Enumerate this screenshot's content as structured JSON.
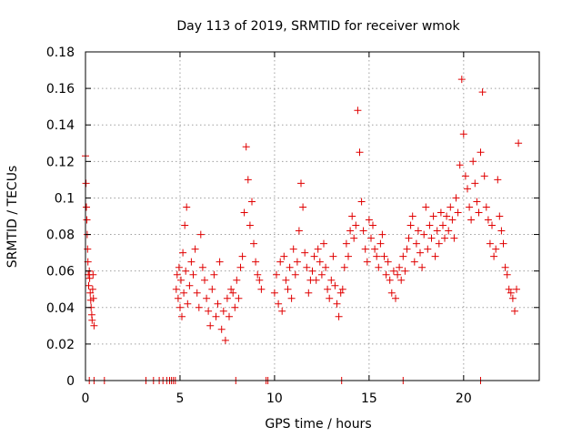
{
  "chart_data": {
    "type": "scatter",
    "title": "Day 113 of 2019, SRMTID for receiver wmok",
    "xlabel": "GPS time / hours",
    "ylabel": "SRMTID / TECUs",
    "xlim": [
      0,
      24
    ],
    "ylim": [
      0,
      0.18
    ],
    "xticks": [
      0,
      5,
      10,
      15,
      20
    ],
    "xtick_labels": [
      "0",
      "5",
      "10",
      "15",
      "20"
    ],
    "yticks": [
      0,
      0.02,
      0.04,
      0.06,
      0.08,
      0.1,
      0.12,
      0.14,
      0.16,
      0.18
    ],
    "ytick_labels": [
      "0",
      "0.02",
      "0.04",
      "0.06",
      "0.08",
      "0.1",
      "0.12",
      "0.14",
      "0.16",
      "0.18"
    ],
    "grid": true,
    "marker": "+",
    "color": "#e00000",
    "series": [
      {
        "name": "SRMTID",
        "x": [
          0.0,
          0.03,
          0.05,
          0.07,
          0.09,
          0.11,
          0.13,
          0.15,
          0.17,
          0.2,
          0.22,
          0.25,
          0.28,
          0.3,
          0.33,
          0.35,
          0.38,
          0.4,
          0.42,
          0.45,
          4.8,
          4.85,
          4.9,
          4.95,
          5.0,
          5.05,
          5.1,
          5.15,
          5.2,
          5.25,
          5.3,
          5.35,
          5.4,
          5.5,
          5.6,
          5.7,
          5.8,
          5.9,
          6.0,
          6.1,
          6.2,
          6.3,
          6.4,
          6.5,
          6.6,
          6.7,
          6.8,
          6.9,
          7.0,
          7.1,
          7.2,
          7.3,
          7.4,
          7.5,
          7.6,
          7.7,
          7.8,
          7.9,
          8.0,
          8.1,
          8.2,
          8.3,
          8.4,
          8.5,
          8.6,
          8.7,
          8.8,
          8.9,
          9.0,
          9.1,
          9.2,
          9.3,
          10.0,
          10.1,
          10.2,
          10.3,
          10.4,
          10.5,
          10.6,
          10.7,
          10.8,
          10.9,
          11.0,
          11.1,
          11.2,
          11.3,
          11.4,
          11.5,
          11.6,
          11.7,
          11.8,
          11.9,
          12.0,
          12.1,
          12.2,
          12.3,
          12.4,
          12.5,
          12.6,
          12.7,
          12.8,
          12.9,
          13.0,
          13.1,
          13.2,
          13.3,
          13.4,
          13.5,
          13.6,
          13.7,
          13.8,
          13.9,
          14.0,
          14.1,
          14.2,
          14.3,
          14.4,
          14.5,
          14.6,
          14.7,
          14.8,
          14.9,
          15.0,
          15.1,
          15.2,
          15.3,
          15.4,
          15.5,
          15.6,
          15.7,
          15.8,
          15.9,
          16.0,
          16.1,
          16.2,
          16.3,
          16.4,
          16.5,
          16.6,
          16.7,
          16.8,
          16.9,
          17.0,
          17.1,
          17.2,
          17.3,
          17.4,
          17.5,
          17.6,
          17.7,
          17.8,
          17.9,
          18.0,
          18.1,
          18.2,
          18.3,
          18.4,
          18.5,
          18.6,
          18.7,
          18.8,
          18.9,
          19.0,
          19.1,
          19.2,
          19.3,
          19.4,
          19.5,
          19.6,
          19.7,
          19.8,
          19.9,
          20.0,
          20.1,
          20.2,
          20.3,
          20.4,
          20.5,
          20.6,
          20.7,
          20.8,
          20.9,
          21.0,
          21.1,
          21.2,
          21.3,
          21.4,
          21.5,
          21.6,
          21.7,
          21.8,
          21.9,
          22.0,
          22.1,
          22.2,
          22.3,
          22.4,
          22.5,
          22.6,
          22.7,
          22.8,
          22.9
        ],
        "y": [
          0.123,
          0.108,
          0.095,
          0.088,
          0.08,
          0.072,
          0.065,
          0.058,
          0.052,
          0.06,
          0.056,
          0.048,
          0.044,
          0.04,
          0.036,
          0.033,
          0.05,
          0.058,
          0.045,
          0.03,
          0.05,
          0.058,
          0.045,
          0.062,
          0.04,
          0.055,
          0.035,
          0.07,
          0.048,
          0.085,
          0.06,
          0.095,
          0.042,
          0.052,
          0.065,
          0.058,
          0.072,
          0.048,
          0.04,
          0.08,
          0.062,
          0.055,
          0.045,
          0.038,
          0.03,
          0.05,
          0.058,
          0.035,
          0.042,
          0.065,
          0.028,
          0.038,
          0.022,
          0.045,
          0.035,
          0.05,
          0.048,
          0.04,
          0.055,
          0.045,
          0.062,
          0.068,
          0.092,
          0.128,
          0.11,
          0.085,
          0.098,
          0.075,
          0.065,
          0.058,
          0.055,
          0.05,
          0.048,
          0.058,
          0.042,
          0.065,
          0.038,
          0.068,
          0.055,
          0.05,
          0.062,
          0.045,
          0.072,
          0.058,
          0.065,
          0.082,
          0.108,
          0.095,
          0.07,
          0.062,
          0.048,
          0.055,
          0.06,
          0.068,
          0.055,
          0.072,
          0.065,
          0.058,
          0.075,
          0.062,
          0.05,
          0.045,
          0.055,
          0.068,
          0.052,
          0.042,
          0.035,
          0.048,
          0.05,
          0.062,
          0.075,
          0.068,
          0.082,
          0.09,
          0.078,
          0.085,
          0.148,
          0.125,
          0.098,
          0.082,
          0.072,
          0.065,
          0.088,
          0.078,
          0.085,
          0.072,
          0.068,
          0.062,
          0.075,
          0.08,
          0.068,
          0.058,
          0.065,
          0.055,
          0.048,
          0.06,
          0.045,
          0.058,
          0.062,
          0.055,
          0.068,
          0.06,
          0.072,
          0.078,
          0.085,
          0.09,
          0.065,
          0.075,
          0.082,
          0.07,
          0.062,
          0.08,
          0.095,
          0.072,
          0.085,
          0.078,
          0.09,
          0.068,
          0.082,
          0.075,
          0.092,
          0.085,
          0.078,
          0.09,
          0.082,
          0.095,
          0.088,
          0.078,
          0.1,
          0.092,
          0.118,
          0.165,
          0.135,
          0.112,
          0.105,
          0.095,
          0.088,
          0.12,
          0.108,
          0.098,
          0.092,
          0.125,
          0.158,
          0.112,
          0.095,
          0.088,
          0.075,
          0.085,
          0.068,
          0.072,
          0.11,
          0.09,
          0.082,
          0.075,
          0.062,
          0.058,
          0.05,
          0.048,
          0.045,
          0.038,
          0.05,
          0.13
        ]
      }
    ],
    "zero_markers_x": [
      0.2,
      0.45,
      1.0,
      3.2,
      3.6,
      3.9,
      4.1,
      4.3,
      4.45,
      4.55,
      4.65,
      4.75,
      7.95,
      9.55,
      9.65,
      13.55,
      16.8,
      20.9
    ]
  }
}
